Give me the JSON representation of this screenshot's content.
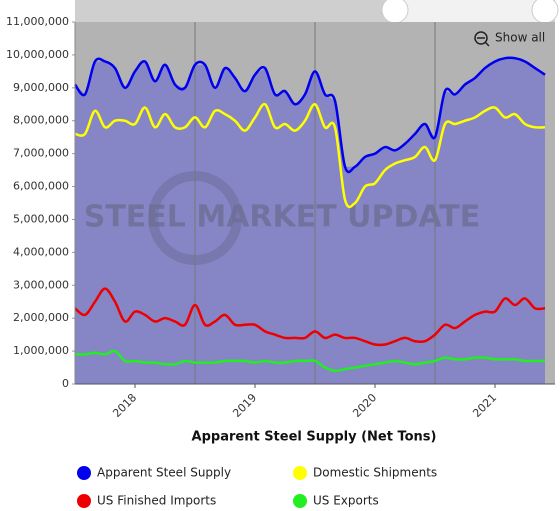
{
  "chart_data": {
    "type": "line",
    "x_label": "Apparent Steel Supply (Net Tons)",
    "watermark": "STEEL MARKET UPDATE",
    "button": "Show all",
    "categories": [
      null,
      null,
      null,
      null,
      null,
      null,
      "2018",
      null,
      null,
      null,
      null,
      null,
      null,
      null,
      null,
      null,
      null,
      null,
      "2019",
      null,
      null,
      null,
      null,
      null,
      null,
      null,
      null,
      null,
      null,
      null,
      "2020",
      null,
      null,
      null,
      null,
      null,
      null,
      null,
      null,
      null,
      null,
      null,
      "2021",
      null,
      null,
      null,
      null,
      null
    ],
    "series": [
      {
        "name": "Apparent Steel Supply",
        "color": "#0000ee",
        "fill": "#8686c6",
        "values": [
          9100000,
          8800000,
          9800000,
          9800000,
          9600000,
          9000000,
          9500000,
          9800000,
          9200000,
          9700000,
          9100000,
          9000000,
          9700000,
          9700000,
          9000000,
          9600000,
          9300000,
          8900000,
          9400000,
          9600000,
          8800000,
          8900000,
          8500000,
          8800000,
          9500000,
          8800000,
          8600000,
          6600000,
          6600000,
          6900000,
          7000000,
          7200000,
          7100000,
          7300000,
          7600000,
          7900000,
          7500000,
          8900000,
          8800000,
          9100000,
          9300000,
          9600000,
          9800000,
          9900000,
          9900000,
          9800000,
          9600000,
          9400000
        ]
      },
      {
        "name": "Domestic Shipments",
        "color": "#ffff00",
        "values": [
          7600000,
          7600000,
          8300000,
          7800000,
          8000000,
          8000000,
          7900000,
          8400000,
          7800000,
          8200000,
          7800000,
          7800000,
          8100000,
          7800000,
          8300000,
          8200000,
          8000000,
          7700000,
          8100000,
          8500000,
          7800000,
          7900000,
          7700000,
          8000000,
          8500000,
          7800000,
          7800000,
          5600000,
          5500000,
          6000000,
          6100000,
          6500000,
          6700000,
          6800000,
          6900000,
          7200000,
          6800000,
          7900000,
          7900000,
          8000000,
          8100000,
          8300000,
          8400000,
          8100000,
          8200000,
          7900000,
          7800000,
          7800000
        ]
      },
      {
        "name": "US Finished Imports",
        "color": "#ee0000",
        "values": [
          2300000,
          2100000,
          2500000,
          2900000,
          2500000,
          1900000,
          2200000,
          2100000,
          1900000,
          2000000,
          1900000,
          1800000,
          2400000,
          1800000,
          1900000,
          2100000,
          1800000,
          1800000,
          1800000,
          1600000,
          1500000,
          1400000,
          1400000,
          1400000,
          1600000,
          1400000,
          1500000,
          1400000,
          1400000,
          1300000,
          1200000,
          1200000,
          1300000,
          1400000,
          1300000,
          1300000,
          1500000,
          1800000,
          1700000,
          1900000,
          2100000,
          2200000,
          2200000,
          2600000,
          2400000,
          2600000,
          2300000,
          2300000
        ]
      },
      {
        "name": "US Exports",
        "color": "#22ee22",
        "values": [
          900000,
          900000,
          950000,
          900000,
          1000000,
          700000,
          700000,
          650000,
          650000,
          600000,
          600000,
          700000,
          650000,
          650000,
          650000,
          700000,
          700000,
          700000,
          650000,
          700000,
          650000,
          650000,
          700000,
          700000,
          700000,
          500000,
          400000,
          450000,
          500000,
          550000,
          600000,
          650000,
          700000,
          650000,
          600000,
          650000,
          700000,
          800000,
          750000,
          750000,
          800000,
          800000,
          750000,
          750000,
          750000,
          700000,
          700000,
          700000
        ]
      }
    ],
    "ylim": [
      0,
      11000000
    ],
    "yticks": [
      0,
      {
        "value": 1000000,
        "label": "1,000,000"
      },
      {
        "value": 2000000,
        "label": "2,000,000"
      },
      {
        "value": 3000000,
        "label": "3,000,000"
      },
      {
        "value": 4000000,
        "label": "4,000,000"
      },
      {
        "value": 5000000,
        "label": "5,000,000"
      },
      {
        "value": 6000000,
        "label": "6,000,000"
      },
      {
        "value": 7000000,
        "label": "7,000,000"
      },
      {
        "value": 8000000,
        "label": "8,000,000"
      },
      {
        "value": 9000000,
        "label": "9,000,000"
      },
      {
        "value": 10000000,
        "label": "10,000,000"
      },
      {
        "value": 11000000,
        "label": "11,000,000"
      }
    ],
    "plot_background": "#b3b3b3"
  }
}
